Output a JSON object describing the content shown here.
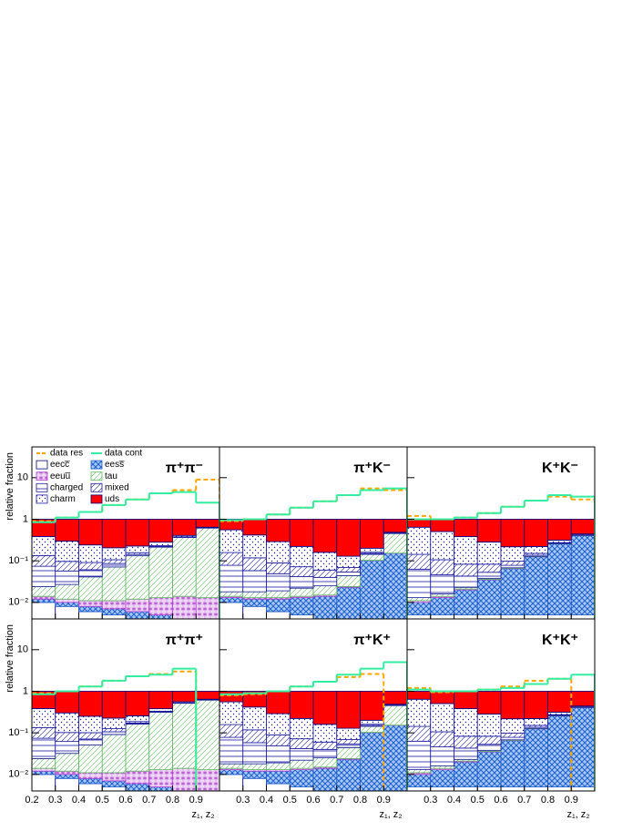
{
  "chart_data": {
    "type": "stacked-step",
    "ylabel": "relative fraction",
    "xlabel": "z₁, z₂",
    "log_y": true,
    "bins": [
      0.2,
      0.3,
      0.4,
      0.5,
      0.6,
      0.7,
      0.8,
      0.9,
      1.0
    ],
    "xlim": [
      0.2,
      1.0
    ],
    "xticks": [
      0.2,
      0.3,
      0.4,
      0.5,
      0.6,
      0.7,
      0.8,
      0.9
    ],
    "ylim": [
      0.004,
      55
    ],
    "yticks": [
      {
        "value": 0.01,
        "label": "10⁻²"
      },
      {
        "value": 0.1,
        "label": "10⁻¹"
      },
      {
        "value": 1,
        "label": "1"
      },
      {
        "value": 10,
        "label": "10"
      }
    ],
    "legend": "upper left",
    "series": [
      {
        "name": "data res",
        "color": "#ffa500",
        "style": "dashed"
      },
      {
        "name": "data cont",
        "color": "#33eea0",
        "style": "solid"
      },
      {
        "name": "eecc̅",
        "color": "#000080",
        "pattern": "open"
      },
      {
        "name": "eess̅",
        "color": "#1c5fd0",
        "pattern": "cross"
      },
      {
        "name": "eeuu̅",
        "color": "#b040d0",
        "pattern": "stars"
      },
      {
        "name": "tau",
        "color": "#5cb85c",
        "pattern": "hatch"
      },
      {
        "name": "charged",
        "color": "#1a1aa0",
        "pattern": "hlines"
      },
      {
        "name": "mixed",
        "color": "#1a1aa0",
        "pattern": "hatch"
      },
      {
        "name": "charm",
        "color": "#1a1aa0",
        "pattern": "dots"
      },
      {
        "name": "uds",
        "color": "#ff0000",
        "pattern": "solid"
      }
    ],
    "panels": [
      {
        "label": "π⁺π⁻",
        "values": [
          [
            0.9,
            1.1,
            1.5,
            2.2,
            3.0,
            4.2,
            5.0,
            9
          ],
          [
            0.85,
            1.1,
            1.5,
            2.2,
            3.0,
            4.2,
            4.5,
            2.5
          ],
          [
            0.01,
            0.008,
            0.006,
            0.005,
            0.004,
            0.003,
            0.003,
            0.002
          ],
          [
            0.002,
            0.002,
            0.002,
            0.002,
            0.002,
            0.002,
            0.001,
            0.001
          ],
          [
            0.002,
            0.002,
            0.003,
            0.004,
            0.006,
            0.008,
            0.01,
            0.01
          ],
          [
            0.01,
            0.015,
            0.03,
            0.06,
            0.12,
            0.2,
            0.35,
            0.6
          ],
          [
            0.05,
            0.03,
            0.02,
            0.015,
            0.01,
            0.008,
            0.006,
            0.005
          ],
          [
            0.06,
            0.04,
            0.03,
            0.02,
            0.015,
            0.01,
            0.008,
            0.006
          ],
          [
            0.25,
            0.2,
            0.15,
            0.1,
            0.07,
            0.05,
            0.03,
            0.02
          ],
          [
            0.616,
            0.703,
            0.759,
            0.794,
            0.773,
            0.719,
            0.592,
            0.356
          ]
        ]
      },
      {
        "label": "π⁺K⁻",
        "values": [
          [
            0.9,
            1.0,
            1.3,
            1.9,
            2.7,
            3.8,
            5.5,
            5
          ],
          [
            0.95,
            1.0,
            1.3,
            1.9,
            2.7,
            3.8,
            5.0,
            5.5
          ],
          [
            0.01,
            0.008,
            0.006,
            0.005,
            0.004,
            0.003,
            0.002,
            0.002
          ],
          [
            0.003,
            0.004,
            0.006,
            0.008,
            0.01,
            0.02,
            0.1,
            0.15
          ],
          [
            0.001,
            0.001,
            0.001,
            0.001,
            0.001,
            0.001,
            0.001,
            0.001
          ],
          [
            0.004,
            0.005,
            0.006,
            0.008,
            0.01,
            0.02,
            0.04,
            0.3
          ],
          [
            0.06,
            0.04,
            0.03,
            0.02,
            0.015,
            0.01,
            0.008,
            0.005
          ],
          [
            0.08,
            0.06,
            0.04,
            0.03,
            0.02,
            0.015,
            0.01,
            0.008
          ],
          [
            0.4,
            0.3,
            0.2,
            0.15,
            0.1,
            0.06,
            0.04,
            0.02
          ],
          [
            0.442,
            0.582,
            0.711,
            0.778,
            0.84,
            0.871,
            0.799,
            0.514
          ]
        ]
      },
      {
        "label": "K⁺K⁻",
        "values": [
          [
            1.2,
            1.0,
            1.1,
            1.4,
            2.0,
            2.8,
            3.5,
            3
          ],
          [
            1.0,
            1.0,
            1.1,
            1.4,
            2.0,
            2.8,
            3.8,
            3.5
          ],
          [
            0.005,
            0.005,
            0.005,
            0.005,
            0.005,
            0.005,
            0.005,
            0.005
          ],
          [
            0.005,
            0.008,
            0.015,
            0.03,
            0.06,
            0.12,
            0.25,
            0.4
          ],
          [
            0.001,
            0.001,
            0.001,
            0.001,
            0.001,
            0.001,
            0.001,
            0.001
          ],
          [
            0.002,
            0.002,
            0.002,
            0.002,
            0.002,
            0.002,
            0.002,
            0.002
          ],
          [
            0.05,
            0.03,
            0.02,
            0.015,
            0.01,
            0.008,
            0.006,
            0.005
          ],
          [
            0.08,
            0.06,
            0.04,
            0.03,
            0.02,
            0.015,
            0.01,
            0.008
          ],
          [
            0.5,
            0.4,
            0.3,
            0.2,
            0.12,
            0.07,
            0.04,
            0.02
          ],
          [
            0.357,
            0.494,
            0.617,
            0.717,
            0.782,
            0.779,
            0.686,
            0.559
          ]
        ]
      },
      {
        "label": "π⁺π⁺",
        "values": [
          [
            0.9,
            1.0,
            1.3,
            1.8,
            2.3,
            2.6,
            3.0,
            null
          ],
          [
            0.85,
            1.0,
            1.3,
            1.8,
            2.3,
            2.5,
            3.5,
            null
          ],
          [
            0.01,
            0.008,
            0.006,
            0.005,
            0.004,
            0.003,
            0.003,
            0.002
          ],
          [
            0.002,
            0.002,
            0.002,
            0.002,
            0.002,
            0.002,
            0.001,
            0.001
          ],
          [
            0.002,
            0.002,
            0.003,
            0.004,
            0.006,
            0.008,
            0.01,
            0.01
          ],
          [
            0.01,
            0.02,
            0.04,
            0.08,
            0.15,
            0.3,
            0.5,
            0.6
          ],
          [
            0.05,
            0.03,
            0.02,
            0.015,
            0.01,
            0.008,
            0.006,
            0.005
          ],
          [
            0.06,
            0.04,
            0.03,
            0.02,
            0.015,
            0.01,
            0.008,
            0.006
          ],
          [
            0.25,
            0.2,
            0.15,
            0.1,
            0.07,
            0.05,
            0.03,
            0.02
          ],
          [
            0.616,
            0.698,
            0.749,
            0.774,
            0.743,
            0.619,
            0.442,
            0.356
          ]
        ]
      },
      {
        "label": "π⁺K⁺",
        "values": [
          [
            0.8,
            0.85,
            1.0,
            1.3,
            1.7,
            2.2,
            2.6,
            null
          ],
          [
            0.85,
            0.9,
            1.0,
            1.3,
            1.7,
            2.5,
            3.5,
            5
          ],
          [
            0.01,
            0.008,
            0.006,
            0.005,
            0.004,
            0.003,
            0.002,
            0.002
          ],
          [
            0.003,
            0.004,
            0.006,
            0.008,
            0.01,
            0.02,
            0.1,
            0.15
          ],
          [
            0.001,
            0.001,
            0.001,
            0.001,
            0.001,
            0.001,
            0.001,
            0.001
          ],
          [
            0.004,
            0.005,
            0.006,
            0.008,
            0.01,
            0.02,
            0.04,
            0.3
          ],
          [
            0.06,
            0.04,
            0.03,
            0.02,
            0.015,
            0.01,
            0.008,
            0.005
          ],
          [
            0.08,
            0.06,
            0.04,
            0.03,
            0.02,
            0.015,
            0.01,
            0.008
          ],
          [
            0.4,
            0.3,
            0.2,
            0.15,
            0.1,
            0.06,
            0.04,
            0.02
          ],
          [
            0.442,
            0.582,
            0.711,
            0.778,
            0.84,
            0.871,
            0.799,
            0.514
          ]
        ]
      },
      {
        "label": "K⁺K⁺",
        "values": [
          [
            1.2,
            0.95,
            1.0,
            1.1,
            1.3,
            1.8,
            2.0,
            null
          ],
          [
            1.1,
            1.0,
            1.0,
            1.1,
            1.2,
            1.5,
            2.0,
            2.5
          ],
          [
            0.005,
            0.005,
            0.005,
            0.005,
            0.005,
            0.005,
            0.005,
            0.005
          ],
          [
            0.005,
            0.008,
            0.015,
            0.03,
            0.06,
            0.12,
            0.25,
            0.4
          ],
          [
            0.001,
            0.001,
            0.001,
            0.001,
            0.001,
            0.001,
            0.001,
            0.001
          ],
          [
            0.002,
            0.002,
            0.002,
            0.002,
            0.002,
            0.002,
            0.002,
            0.002
          ],
          [
            0.05,
            0.03,
            0.02,
            0.015,
            0.01,
            0.008,
            0.006,
            0.005
          ],
          [
            0.08,
            0.06,
            0.04,
            0.03,
            0.02,
            0.015,
            0.01,
            0.008
          ],
          [
            0.5,
            0.4,
            0.3,
            0.2,
            0.12,
            0.07,
            0.04,
            0.02
          ],
          [
            0.357,
            0.494,
            0.617,
            0.717,
            0.782,
            0.779,
            0.686,
            0.559
          ]
        ]
      }
    ]
  }
}
